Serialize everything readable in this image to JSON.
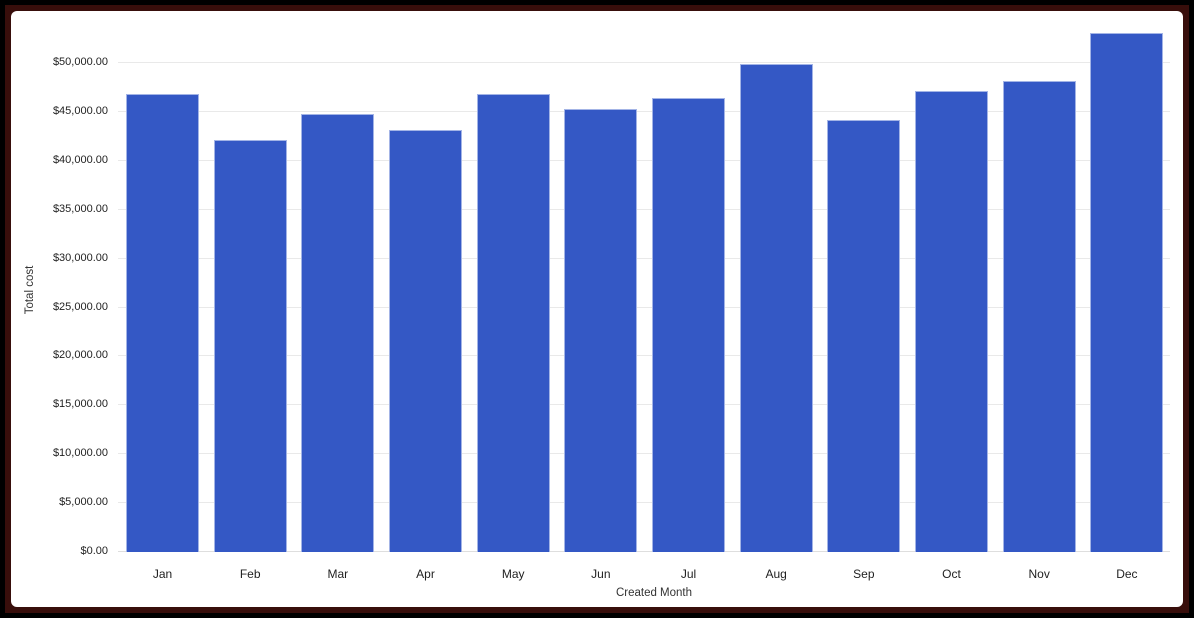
{
  "frame": {
    "outer_color": "#000000",
    "inner_color": "#380e0b",
    "canvas_background": "#ffffff"
  },
  "chart_data": {
    "type": "bar",
    "title": "",
    "xlabel": "Created Month",
    "ylabel": "Total cost",
    "categories": [
      "Jan",
      "Feb",
      "Mar",
      "Apr",
      "May",
      "Jun",
      "Jul",
      "Aug",
      "Sep",
      "Oct",
      "Nov",
      "Dec"
    ],
    "values": [
      46800,
      42150,
      44850,
      43200,
      46900,
      45300,
      46400,
      49900,
      44150,
      47200,
      48200,
      53100
    ],
    "series_name": "Total cost",
    "ylim": [
      0,
      55000
    ],
    "y_ticks": [
      {
        "value": 0,
        "label": "$0.00"
      },
      {
        "value": 5000,
        "label": "$5,000.00"
      },
      {
        "value": 10000,
        "label": "$10,000.00"
      },
      {
        "value": 15000,
        "label": "$15,000.00"
      },
      {
        "value": 20000,
        "label": "$20,000.00"
      },
      {
        "value": 25000,
        "label": "$25,000.00"
      },
      {
        "value": 30000,
        "label": "$30,000.00"
      },
      {
        "value": 35000,
        "label": "$35,000.00"
      },
      {
        "value": 40000,
        "label": "$40,000.00"
      },
      {
        "value": 45000,
        "label": "$45,000.00"
      },
      {
        "value": 50000,
        "label": "$50,000.00"
      }
    ],
    "grid": "horizontal",
    "legend": "none",
    "colors": {
      "bar": "#3458c5",
      "bar_border": "#a3b4e6",
      "gridline": "#e9e9e9",
      "axis_line": "#dedede",
      "tick_text": "#1f1f1f",
      "axis_title_text": "#333333"
    }
  }
}
